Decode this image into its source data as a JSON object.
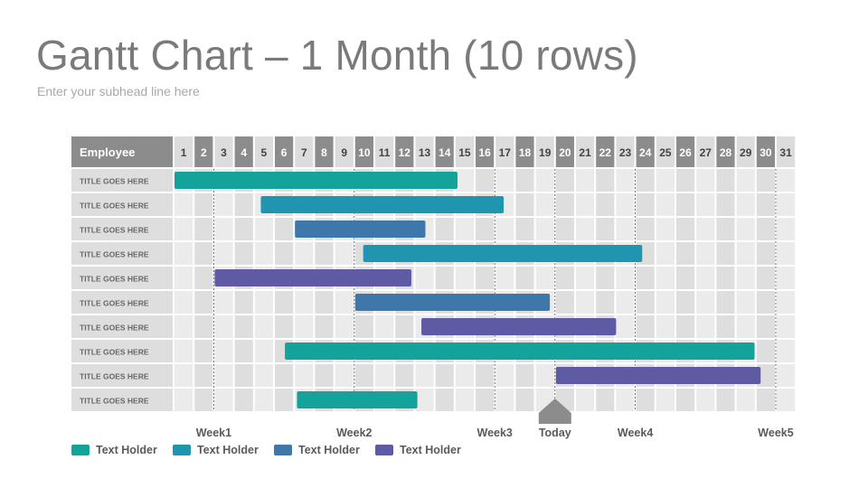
{
  "page": {
    "title": "Gantt Chart – 1 Month (10 rows)",
    "subtitle": "Enter your subhead line here"
  },
  "colors": {
    "teal": "#13a39a",
    "cyan": "#1f95b0",
    "blue": "#3e77aa",
    "purple": "#5f5aa4",
    "header_dark": "#8c8c8c",
    "header_light": "#dcdcdc",
    "cell_light": "#ebebeb",
    "cell_dark": "#dedede",
    "today_marker": "#8c8c8c"
  },
  "chart_data": {
    "type": "gantt",
    "header_label": "Employee",
    "days": [
      1,
      2,
      3,
      4,
      5,
      6,
      7,
      8,
      9,
      10,
      11,
      12,
      13,
      14,
      15,
      16,
      17,
      18,
      19,
      20,
      21,
      22,
      23,
      24,
      25,
      26,
      27,
      28,
      29,
      30,
      31
    ],
    "dark_header_days": [
      2,
      4,
      6,
      8,
      10,
      12,
      14,
      16,
      18,
      20,
      22,
      24,
      26,
      28,
      30
    ],
    "rows": [
      {
        "label": "TITLE GOES HERE",
        "start": 1,
        "end": 15.1,
        "color": "teal"
      },
      {
        "label": "TITLE GOES HERE",
        "start": 5.3,
        "end": 17.4,
        "color": "cyan"
      },
      {
        "label": "TITLE GOES HERE",
        "start": 7,
        "end": 13.5,
        "color": "blue"
      },
      {
        "label": "TITLE GOES HERE",
        "start": 10.4,
        "end": 24.3,
        "color": "cyan"
      },
      {
        "label": "TITLE GOES HERE",
        "start": 3,
        "end": 12.8,
        "color": "purple"
      },
      {
        "label": "TITLE GOES HERE",
        "start": 10,
        "end": 19.7,
        "color": "blue"
      },
      {
        "label": "TITLE GOES HERE",
        "start": 13.3,
        "end": 23,
        "color": "purple"
      },
      {
        "label": "TITLE GOES HERE",
        "start": 6.5,
        "end": 29.9,
        "color": "teal"
      },
      {
        "label": "TITLE GOES HERE",
        "start": 20,
        "end": 30.2,
        "color": "purple"
      },
      {
        "label": "TITLE GOES HERE",
        "start": 7.1,
        "end": 13.1,
        "color": "teal"
      }
    ],
    "week_markers": [
      {
        "label": "Week1",
        "day": 3
      },
      {
        "label": "Week2",
        "day": 10
      },
      {
        "label": "Week3",
        "day": 17
      },
      {
        "label": "Week4",
        "day": 24
      },
      {
        "label": "Week5",
        "day": 31
      }
    ],
    "today": {
      "label": "Today",
      "day": 20
    },
    "legend": [
      {
        "label": "Text Holder",
        "color": "teal"
      },
      {
        "label": "Text Holder",
        "color": "cyan"
      },
      {
        "label": "Text Holder",
        "color": "blue"
      },
      {
        "label": "Text Holder",
        "color": "purple"
      }
    ]
  }
}
